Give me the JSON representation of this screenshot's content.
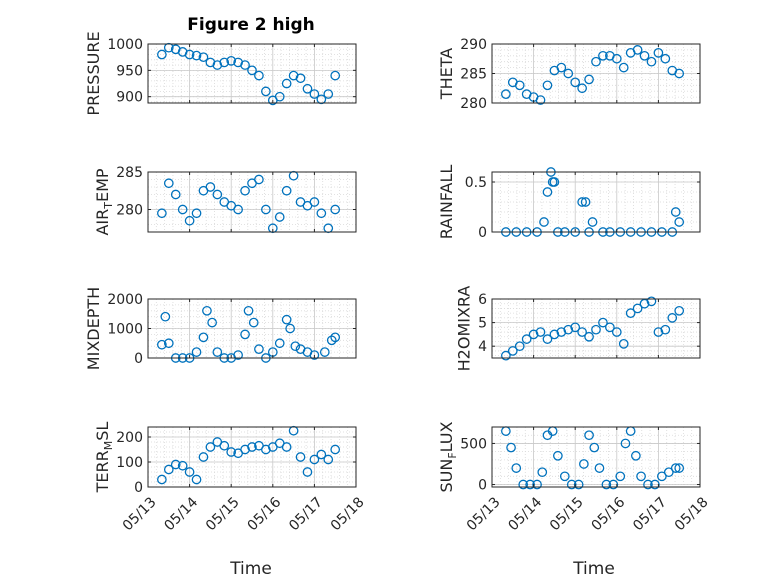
{
  "figure": {
    "title": "Figure 2 high",
    "xlabel": "Time",
    "marker_color": "#0072BD"
  },
  "x_axis": {
    "range": [
      "2024-05-13",
      "2024-05-18"
    ],
    "ticks": [
      "2024-05-13",
      "2024-05-14",
      "2024-05-15",
      "2024-05-16",
      "2024-05-17",
      "2024-05-18"
    ],
    "tick_labels": [
      "05/13",
      "05/14",
      "05/15",
      "05/16",
      "05/17",
      "05/18"
    ]
  },
  "chart_data": [
    {
      "type": "scatter",
      "id": "pressure",
      "ylabel": "PRESSURE",
      "ylabel_sub": "",
      "ylim": [
        888,
        1000
      ],
      "yticks": [
        900,
        950,
        1000
      ],
      "ytick_labels": [
        "900",
        "950",
        "1000"
      ],
      "x": [
        "05/13 08h",
        "05/13 12h",
        "05/13 16h",
        "05/13 20h",
        "05/14 00h",
        "05/14 04h",
        "05/14 08h",
        "05/14 12h",
        "05/14 16h",
        "05/14 20h",
        "05/15 00h",
        "05/15 04h",
        "05/15 08h",
        "05/15 12h",
        "05/15 16h",
        "05/15 20h",
        "05/16 00h",
        "05/16 04h",
        "05/16 08h",
        "05/16 12h",
        "05/16 16h",
        "05/16 20h",
        "05/17 00h",
        "05/17 04h",
        "05/17 08h",
        "05/17 12h"
      ],
      "y": [
        980,
        993,
        990,
        985,
        980,
        978,
        975,
        965,
        960,
        965,
        968,
        965,
        960,
        950,
        940,
        910,
        893,
        900,
        925,
        940,
        935,
        915,
        905,
        895,
        905,
        940
      ]
    },
    {
      "type": "scatter",
      "id": "theta",
      "ylabel": "THETA",
      "ylabel_sub": "",
      "ylim": [
        280,
        290
      ],
      "yticks": [
        280,
        285,
        290
      ],
      "ytick_labels": [
        "280",
        "285",
        "290"
      ],
      "x": [
        "05/13 08h",
        "05/13 12h",
        "05/13 16h",
        "05/13 20h",
        "05/14 00h",
        "05/14 04h",
        "05/14 08h",
        "05/14 12h",
        "05/14 16h",
        "05/14 20h",
        "05/15 00h",
        "05/15 04h",
        "05/15 08h",
        "05/15 12h",
        "05/15 16h",
        "05/15 20h",
        "05/16 00h",
        "05/16 04h",
        "05/16 08h",
        "05/16 12h",
        "05/16 16h",
        "05/16 20h",
        "05/17 00h",
        "05/17 04h",
        "05/17 08h",
        "05/17 12h"
      ],
      "y": [
        281.5,
        283.5,
        283,
        281.5,
        281,
        280.5,
        283,
        285.5,
        286,
        285,
        283.5,
        282.5,
        284,
        287,
        288,
        288,
        287.5,
        286,
        288.5,
        289,
        288,
        287,
        288.5,
        287.5,
        285.5,
        285
      ]
    },
    {
      "type": "scatter",
      "id": "air_temp",
      "ylabel": "AIR",
      "ylabel_sub": "T",
      "ylabel_post": "EMP",
      "ylim": [
        277,
        285
      ],
      "yticks": [
        280,
        285
      ],
      "ytick_labels": [
        "280",
        "285"
      ],
      "x": [
        "05/13 08h",
        "05/13 12h",
        "05/13 16h",
        "05/13 20h",
        "05/14 00h",
        "05/14 04h",
        "05/14 08h",
        "05/14 12h",
        "05/14 16h",
        "05/14 20h",
        "05/15 00h",
        "05/15 04h",
        "05/15 08h",
        "05/15 12h",
        "05/15 16h",
        "05/15 20h",
        "05/16 00h",
        "05/16 04h",
        "05/16 08h",
        "05/16 12h",
        "05/16 16h",
        "05/16 20h",
        "05/17 00h",
        "05/17 04h",
        "05/17 08h",
        "05/17 12h"
      ],
      "y": [
        279.5,
        283.5,
        282,
        280,
        278.5,
        279.5,
        282.5,
        283,
        282,
        281,
        280.5,
        280,
        282.5,
        283.5,
        284,
        280,
        277.5,
        279,
        282.5,
        284.5,
        281,
        280.5,
        281,
        279.5,
        277.5,
        280
      ]
    },
    {
      "type": "scatter",
      "id": "rainfall",
      "ylabel": "RAINFALL",
      "ylabel_sub": "",
      "ylim": [
        0,
        0.6
      ],
      "yticks": [
        0,
        0.5
      ],
      "ytick_labels": [
        "0",
        "0.5"
      ],
      "x": [
        "05/13 08h",
        "05/13 14h",
        "05/13 20h",
        "05/14 02h",
        "05/14 06h",
        "05/14 08h",
        "05/14 10h",
        "05/14 11h",
        "05/14 12h",
        "05/14 14h",
        "05/14 18h",
        "05/15 00h",
        "05/15 04h",
        "05/15 06h",
        "05/15 08h",
        "05/15 10h",
        "05/15 16h",
        "05/15 20h",
        "05/16 02h",
        "05/16 08h",
        "05/16 14h",
        "05/16 20h",
        "05/17 02h",
        "05/17 08h",
        "05/17 10h",
        "05/17 12h"
      ],
      "y": [
        0,
        0,
        0,
        0,
        0.1,
        0.4,
        0.6,
        0.5,
        0.5,
        0,
        0,
        0,
        0.3,
        0.3,
        0,
        0.1,
        0,
        0,
        0,
        0,
        0,
        0,
        0,
        0,
        0.2,
        0.1
      ]
    },
    {
      "type": "scatter",
      "id": "mixdepth",
      "ylabel": "MIXDEPTH",
      "ylabel_sub": "",
      "ylim": [
        0,
        2000
      ],
      "yticks": [
        0,
        1000,
        2000
      ],
      "ytick_labels": [
        "0",
        "1000",
        "2000"
      ],
      "x": [
        "05/13 08h",
        "05/13 10h",
        "05/13 12h",
        "05/13 16h",
        "05/13 20h",
        "05/14 00h",
        "05/14 04h",
        "05/14 08h",
        "05/14 10h",
        "05/14 13h",
        "05/14 16h",
        "05/14 20h",
        "05/15 00h",
        "05/15 04h",
        "05/15 08h",
        "05/15 10h",
        "05/15 13h",
        "05/15 16h",
        "05/15 20h",
        "05/16 00h",
        "05/16 04h",
        "05/16 08h",
        "05/16 10h",
        "05/16 13h",
        "05/16 16h",
        "05/16 20h",
        "05/17 00h",
        "05/17 06h",
        "05/17 10h",
        "05/17 12h"
      ],
      "y": [
        450,
        1400,
        500,
        0,
        0,
        0,
        200,
        700,
        1600,
        1200,
        200,
        0,
        0,
        100,
        800,
        1600,
        1200,
        300,
        0,
        200,
        500,
        1300,
        1000,
        400,
        300,
        200,
        100,
        200,
        600,
        700
      ]
    },
    {
      "type": "scatter",
      "id": "h2omixra",
      "ylabel": "H2OMIXRA",
      "ylabel_sub": "",
      "ylim": [
        3.5,
        6
      ],
      "yticks": [
        4,
        5,
        6
      ],
      "ytick_labels": [
        "4",
        "5",
        "6"
      ],
      "x": [
        "05/13 08h",
        "05/13 12h",
        "05/13 16h",
        "05/13 20h",
        "05/14 00h",
        "05/14 04h",
        "05/14 08h",
        "05/14 12h",
        "05/14 16h",
        "05/14 20h",
        "05/15 00h",
        "05/15 04h",
        "05/15 08h",
        "05/15 12h",
        "05/15 16h",
        "05/15 20h",
        "05/16 00h",
        "05/16 04h",
        "05/16 08h",
        "05/16 12h",
        "05/16 16h",
        "05/16 20h",
        "05/17 00h",
        "05/17 04h",
        "05/17 08h",
        "05/17 12h"
      ],
      "y": [
        3.6,
        3.8,
        4.0,
        4.3,
        4.5,
        4.6,
        4.3,
        4.5,
        4.6,
        4.7,
        4.8,
        4.6,
        4.4,
        4.7,
        5.0,
        4.8,
        4.6,
        4.1,
        5.4,
        5.6,
        5.8,
        5.9,
        4.6,
        4.7,
        5.2,
        5.5
      ]
    },
    {
      "type": "scatter",
      "id": "terr_msl",
      "ylabel": "TERR",
      "ylabel_sub": "M",
      "ylabel_post": "SL",
      "ylim": [
        0,
        240
      ],
      "yticks": [
        0,
        100,
        200
      ],
      "ytick_labels": [
        "0",
        "100",
        "200"
      ],
      "x": [
        "05/13 08h",
        "05/13 12h",
        "05/13 16h",
        "05/13 20h",
        "05/14 00h",
        "05/14 04h",
        "05/14 08h",
        "05/14 12h",
        "05/14 16h",
        "05/14 20h",
        "05/15 00h",
        "05/15 04h",
        "05/15 08h",
        "05/15 12h",
        "05/15 16h",
        "05/15 20h",
        "05/16 00h",
        "05/16 04h",
        "05/16 08h",
        "05/16 12h",
        "05/16 16h",
        "05/16 20h",
        "05/17 00h",
        "05/17 04h",
        "05/17 08h",
        "05/17 12h"
      ],
      "y": [
        30,
        70,
        90,
        85,
        60,
        30,
        120,
        160,
        180,
        165,
        140,
        135,
        150,
        160,
        165,
        150,
        160,
        175,
        160,
        225,
        120,
        60,
        110,
        130,
        110,
        150
      ]
    },
    {
      "type": "scatter",
      "id": "sun_flux",
      "ylabel": "SUN",
      "ylabel_sub": "F",
      "ylabel_post": "LUX",
      "ylim": [
        -30,
        700
      ],
      "yticks": [
        0,
        500
      ],
      "ytick_labels": [
        "0",
        "500"
      ],
      "x": [
        "05/13 08h",
        "05/13 11h",
        "05/13 14h",
        "05/13 18h",
        "05/13 22h",
        "05/14 02h",
        "05/14 05h",
        "05/14 08h",
        "05/14 11h",
        "05/14 14h",
        "05/14 18h",
        "05/14 22h",
        "05/15 02h",
        "05/15 05h",
        "05/15 08h",
        "05/15 11h",
        "05/15 14h",
        "05/15 18h",
        "05/15 22h",
        "05/16 02h",
        "05/16 05h",
        "05/16 08h",
        "05/16 11h",
        "05/16 14h",
        "05/16 18h",
        "05/16 22h",
        "05/17 02h",
        "05/17 06h",
        "05/17 10h",
        "05/17 12h"
      ],
      "y": [
        650,
        450,
        200,
        0,
        0,
        0,
        150,
        600,
        650,
        350,
        100,
        0,
        0,
        250,
        600,
        450,
        200,
        0,
        0,
        100,
        500,
        650,
        350,
        100,
        0,
        0,
        100,
        150,
        200,
        200
      ]
    }
  ]
}
